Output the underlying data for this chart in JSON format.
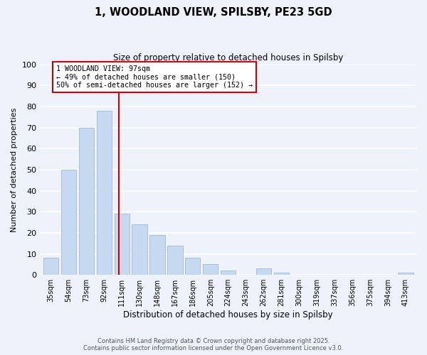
{
  "title": "1, WOODLAND VIEW, SPILSBY, PE23 5GD",
  "subtitle": "Size of property relative to detached houses in Spilsby",
  "xlabel": "Distribution of detached houses by size in Spilsby",
  "ylabel": "Number of detached properties",
  "bar_labels": [
    "35sqm",
    "54sqm",
    "73sqm",
    "92sqm",
    "111sqm",
    "130sqm",
    "148sqm",
    "167sqm",
    "186sqm",
    "205sqm",
    "224sqm",
    "243sqm",
    "262sqm",
    "281sqm",
    "300sqm",
    "319sqm",
    "337sqm",
    "356sqm",
    "375sqm",
    "394sqm",
    "413sqm"
  ],
  "bar_values": [
    8,
    50,
    70,
    78,
    29,
    24,
    19,
    14,
    8,
    5,
    2,
    0,
    3,
    1,
    0,
    0,
    0,
    0,
    0,
    0,
    1
  ],
  "bar_color": "#c6d9f0",
  "bar_edge_color": "#a0b8d8",
  "vline_x": 3.82,
  "vline_color": "#cc0000",
  "annotation_title": "1 WOODLAND VIEW: 97sqm",
  "annotation_line1": "← 49% of detached houses are smaller (150)",
  "annotation_line2": "50% of semi-detached houses are larger (152) →",
  "annotation_box_color": "#ffffff",
  "annotation_box_edge_color": "#cc0000",
  "ylim": [
    0,
    100
  ],
  "yticks": [
    0,
    10,
    20,
    30,
    40,
    50,
    60,
    70,
    80,
    90,
    100
  ],
  "footnote1": "Contains HM Land Registry data © Crown copyright and database right 2025.",
  "footnote2": "Contains public sector information licensed under the Open Government Licence v3.0.",
  "bg_color": "#eef2fb",
  "grid_color": "#ffffff"
}
